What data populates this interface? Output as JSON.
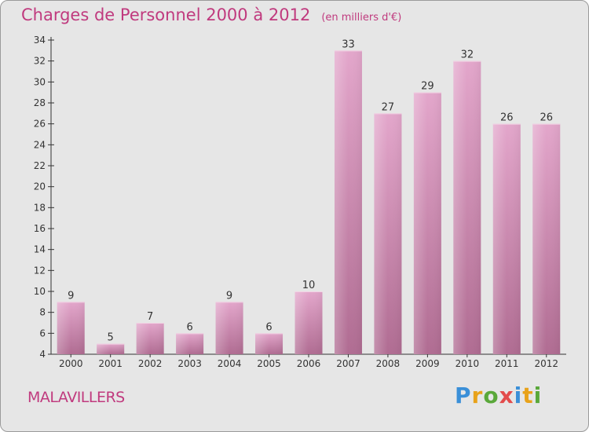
{
  "header": {
    "title": "Charges de Personnel 2000 à 2012",
    "subtitle": "(en milliers d'€)"
  },
  "footer": {
    "commune": "MALAVILLERS",
    "logo_text": "Proxiti"
  },
  "colors": {
    "title": "#c03a7e",
    "bar_top": "#e3a6cb",
    "bar_bottom": "#b06c92",
    "background": "#e6e6e6"
  },
  "chart_data": {
    "type": "bar",
    "title": "Charges de Personnel 2000 à 2012",
    "subtitle": "(en milliers d'€)",
    "categories": [
      "2000",
      "2001",
      "2002",
      "2003",
      "2004",
      "2005",
      "2006",
      "2007",
      "2008",
      "2009",
      "2010",
      "2011",
      "2012"
    ],
    "values": [
      9,
      5,
      7,
      6,
      9,
      6,
      10,
      33,
      27,
      29,
      32,
      26,
      26
    ],
    "ylim": [
      4,
      34
    ],
    "yticks": [
      4,
      6,
      8,
      10,
      12,
      14,
      16,
      18,
      20,
      22,
      24,
      26,
      28,
      30,
      32,
      34
    ],
    "grid": false
  }
}
